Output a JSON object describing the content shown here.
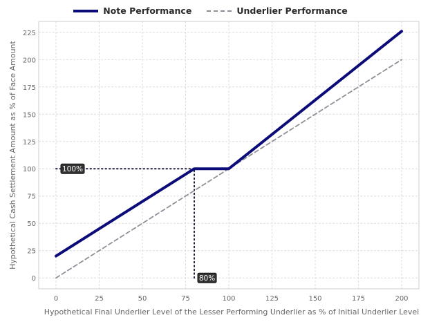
{
  "chart_data": {
    "type": "line",
    "xlabel": "Hypothetical Final Underlier Level of the Lesser Performing Underlier as % of Initial Underlier Level",
    "ylabel": "Hypothetical Cash Settlement Amount as % of Face Amount",
    "xlim": [
      -10,
      210
    ],
    "ylim": [
      -10,
      235
    ],
    "x_ticks": [
      "0",
      "25",
      "50",
      "75",
      "100",
      "125",
      "150",
      "175",
      "200"
    ],
    "y_ticks": [
      "0",
      "25",
      "50",
      "75",
      "100",
      "125",
      "150",
      "175",
      "200",
      "225"
    ],
    "grid": true,
    "legend_position": "top-center",
    "series": [
      {
        "name": "Note Performance",
        "style": "solid",
        "color": "#0b0b7a",
        "x": [
          0,
          80,
          100,
          200
        ],
        "y": [
          20,
          100,
          100,
          226
        ]
      },
      {
        "name": "Underlier Performance",
        "style": "dashed",
        "color": "#8f8f99",
        "x": [
          0,
          200
        ],
        "y": [
          0,
          200
        ]
      }
    ],
    "annotations": [
      {
        "text": "100%",
        "x": 0,
        "y": 100,
        "guide": "horizontal",
        "guide_to_x": 80
      },
      {
        "text": "80%",
        "x": 80,
        "y": 0,
        "guide": "vertical",
        "guide_to_y": 100
      }
    ]
  }
}
